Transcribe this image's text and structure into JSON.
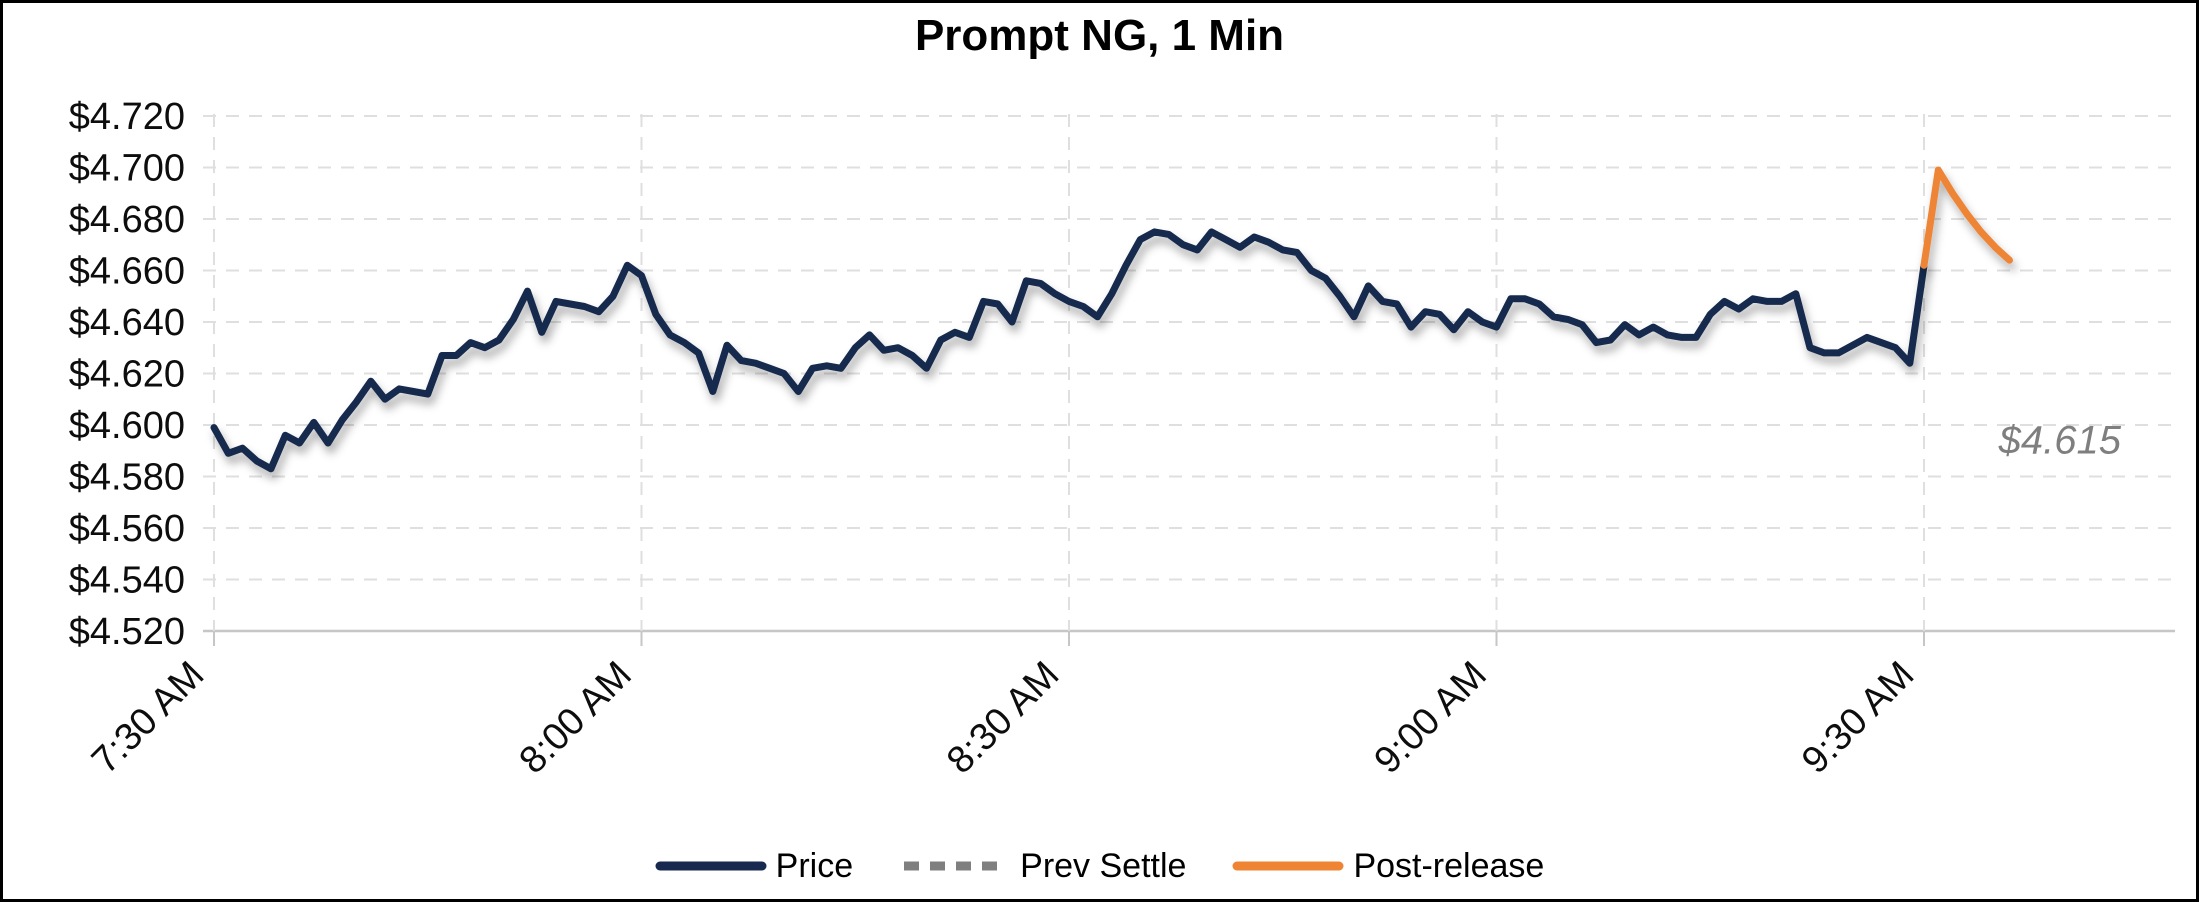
{
  "title": "Prompt NG, 1 Min",
  "annotation": {
    "label": "$4.615",
    "color": "#7F7F7F"
  },
  "legend": [
    {
      "label": "Price",
      "color": "#17294E",
      "dash": "solid"
    },
    {
      "label": "Prev Settle",
      "color": "#7F7F7F",
      "dash": "dashed"
    },
    {
      "label": "Post-release",
      "color": "#EE8434",
      "dash": "solid"
    }
  ],
  "colors": {
    "price": "#17294E",
    "prev_settle": "#7F7F7F",
    "post_release": "#EE8434",
    "gridline": "#DFDFDF",
    "axis_line": "#C6C6C6",
    "annotation_text": "#7F7F7F"
  },
  "chart_data": {
    "type": "line",
    "title": "Prompt NG, 1 Min",
    "xlabel": "",
    "ylabel": "",
    "x_unit": "1 minute per point",
    "x_tick_labels": [
      "7:30 AM",
      "8:00 AM",
      "8:30 AM",
      "9:00 AM",
      "9:30 AM"
    ],
    "x_tick_minutes": [
      0,
      30,
      60,
      90,
      120
    ],
    "xlim_minutes": [
      0,
      138
    ],
    "y_tick_labels": [
      "$4.520",
      "$4.540",
      "$4.560",
      "$4.580",
      "$4.600",
      "$4.620",
      "$4.640",
      "$4.660",
      "$4.680",
      "$4.700",
      "$4.720"
    ],
    "y_tick_values": [
      4.52,
      4.54,
      4.56,
      4.58,
      4.6,
      4.62,
      4.64,
      4.66,
      4.68,
      4.7,
      4.72
    ],
    "ylim": [
      4.52,
      4.72
    ],
    "grid": "dashed",
    "legend_position": "bottom",
    "prev_settle_value": 4.615,
    "prev_settle_label": "$4.615",
    "series": [
      {
        "name": "Price",
        "color": "#17294E",
        "dash": "solid",
        "start_minute": 0,
        "start_time": "7:30 AM",
        "values": [
          4.599,
          4.589,
          4.591,
          4.586,
          4.583,
          4.596,
          4.593,
          4.601,
          4.593,
          4.602,
          4.609,
          4.617,
          4.61,
          4.614,
          4.613,
          4.612,
          4.627,
          4.627,
          4.632,
          4.63,
          4.633,
          4.641,
          4.652,
          4.636,
          4.648,
          4.647,
          4.646,
          4.644,
          4.65,
          4.662,
          4.658,
          4.643,
          4.635,
          4.632,
          4.628,
          4.613,
          4.631,
          4.625,
          4.624,
          4.622,
          4.62,
          4.613,
          4.622,
          4.623,
          4.622,
          4.63,
          4.635,
          4.629,
          4.63,
          4.627,
          4.622,
          4.633,
          4.636,
          4.634,
          4.648,
          4.647,
          4.64,
          4.656,
          4.655,
          4.651,
          4.648,
          4.646,
          4.642,
          4.651,
          4.662,
          4.672,
          4.675,
          4.674,
          4.67,
          4.668,
          4.675,
          4.672,
          4.669,
          4.673,
          4.671,
          4.668,
          4.667,
          4.66,
          4.657,
          4.65,
          4.642,
          4.654,
          4.648,
          4.647,
          4.638,
          4.644,
          4.643,
          4.637,
          4.644,
          4.64,
          4.638,
          4.649,
          4.649,
          4.647,
          4.642,
          4.641,
          4.639,
          4.632,
          4.633,
          4.639,
          4.635,
          4.638,
          4.635,
          4.634,
          4.634,
          4.643,
          4.648,
          4.645,
          4.649,
          4.648,
          4.648,
          4.651,
          4.63,
          4.628,
          4.628,
          4.631,
          4.634,
          4.632,
          4.63,
          4.624,
          4.662
        ]
      },
      {
        "name": "Prev Settle",
        "color": "#7F7F7F",
        "dash": "dashed",
        "value": 4.615
      },
      {
        "name": "Post-release",
        "color": "#EE8434",
        "dash": "solid",
        "start_minute": 120,
        "start_time": "9:30 AM",
        "values": [
          4.662,
          4.699,
          4.69,
          4.682,
          4.675,
          4.669,
          4.664
        ]
      }
    ]
  }
}
